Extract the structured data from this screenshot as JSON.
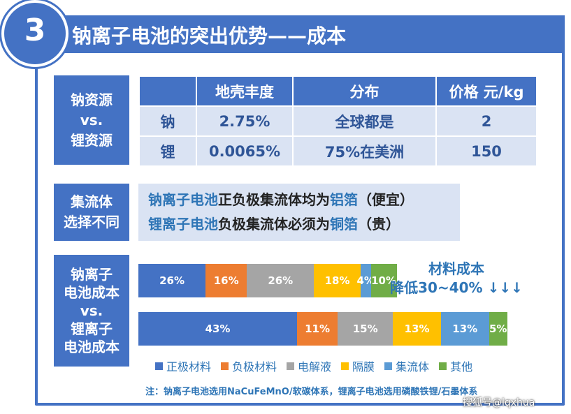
{
  "badge_number": "3",
  "title": "钠离子电池的突出优势——成本",
  "resource": {
    "label_lines": [
      "钠资源",
      "vs.",
      "锂资源"
    ],
    "headers": [
      "",
      "地壳丰度",
      "分布",
      "价格 元/kg"
    ],
    "rows": [
      [
        "钠",
        "2.75%",
        "全球都是",
        "2"
      ],
      [
        "锂",
        "0.0065%",
        "75%在美洲",
        "150"
      ]
    ]
  },
  "collector": {
    "label_lines": [
      "集流体",
      "选择不同"
    ],
    "line1": {
      "a": "钠离子电池",
      "b": "正负极集流体均为",
      "c": "铝箔",
      "d": "（便宜）"
    },
    "line2": {
      "a": "锂离子电池",
      "b": "负极集流体必须为",
      "c": "铜箔",
      "d": "（贵）"
    }
  },
  "cost": {
    "label_lines": [
      "钠离子",
      "电池成本",
      "vs.",
      "锂离子",
      "电池成本"
    ],
    "annotation_line1": "材料成本",
    "annotation_line2": "降低30~40% ↓↓↓",
    "note": "注：钠离子电池选用NaCuFeMnO/软碳体系，锂离子电池选用磷酸铁锂/石墨体系"
  },
  "colors": {
    "primary": "#4472c4",
    "light": "#dae3f3",
    "text_blue": "#2e75b6",
    "series": [
      "#4472c4",
      "#ed7d31",
      "#a5a5a5",
      "#ffc000",
      "#5b9bd5",
      "#70ad47"
    ]
  },
  "chart_data": {
    "type": "bar",
    "stacked": true,
    "orientation": "horizontal",
    "categories": [
      "钠离子电池",
      "锂离子电池"
    ],
    "series": [
      {
        "name": "正极材料",
        "values": [
          26,
          43
        ],
        "labels": [
          "26%",
          "43%"
        ]
      },
      {
        "name": "负极材料",
        "values": [
          16,
          11
        ],
        "labels": [
          "16%",
          "11%"
        ]
      },
      {
        "name": "电解液",
        "values": [
          26,
          15
        ],
        "labels": [
          "26%",
          "15%"
        ]
      },
      {
        "name": "隔膜",
        "values": [
          18,
          13
        ],
        "labels": [
          "18%",
          "13%"
        ]
      },
      {
        "name": "集流体",
        "values": [
          4,
          13
        ],
        "labels": [
          "4%",
          "13%"
        ]
      },
      {
        "name": "其他",
        "values": [
          10,
          5
        ],
        "labels": [
          "10%",
          "5%"
        ]
      }
    ],
    "totals_relative": [
      0.7,
      1.0
    ],
    "legend_position": "bottom"
  },
  "watermark": "搜狐号@lqxhua"
}
